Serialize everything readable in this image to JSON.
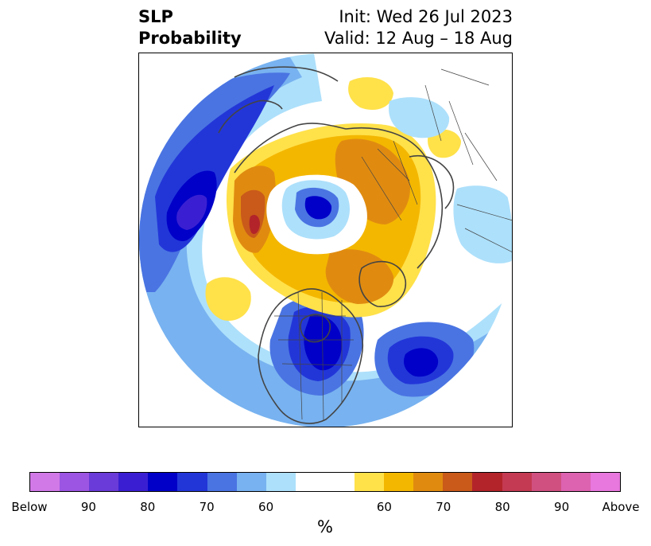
{
  "title": {
    "left_line1": "SLP",
    "left_line2": "Probability",
    "right_line1": "Init: Wed 26 Jul 2023",
    "right_line2": "Valid: 12 Aug – 18 Aug"
  },
  "colorbar": {
    "unit": "%",
    "colors": [
      "#d279e8",
      "#9c55e2",
      "#6a3bd8",
      "#3a1fd2",
      "#0000c8",
      "#2236d8",
      "#4a74e2",
      "#78b2f0",
      "#ade0fb",
      "#ffffff",
      "#ffffff",
      "#ffe14a",
      "#f4b700",
      "#e08b10",
      "#c95a1a",
      "#b2242a",
      "#c43a52",
      "#d05080",
      "#dd62b0",
      "#e878dd"
    ],
    "labels": [
      "Below",
      "90",
      "80",
      "70",
      "60",
      "60",
      "70",
      "80",
      "90",
      "Above"
    ]
  },
  "map": {
    "projection": "north-polar-stereographic",
    "colors": {
      "light_blue": "#ade0fb",
      "sky_blue": "#78b2f0",
      "mid_blue": "#4a74e2",
      "royal_blue": "#2236d8",
      "deep_blue": "#0000c8",
      "indigo": "#3a1fd2",
      "violet": "#6a3bd8",
      "yellow": "#ffe14a",
      "gold": "#f4b700",
      "orange": "#e08b10",
      "dark_orange": "#c95a1a",
      "red": "#b2242a",
      "coastline": "#444444"
    }
  }
}
